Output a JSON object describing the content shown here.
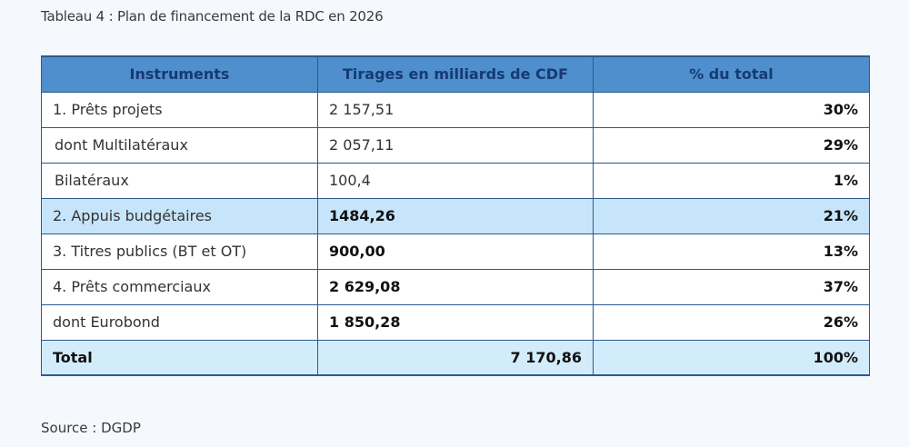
{
  "caption": "Tableau 4 : Plan de financement de la RDC en 2026",
  "table": {
    "headers": [
      "Instruments",
      "Tirages en milliards de CDF",
      "% du total"
    ],
    "rows": [
      {
        "instrument": "1. Prêts projets",
        "tirages": "2 157,51",
        "pct": "30%"
      },
      {
        "instrument": " dont Multilatéraux",
        "tirages": "2 057,11",
        "pct": "29%"
      },
      {
        "instrument": " Bilatéraux",
        "tirages": "100,4",
        "pct": "1%"
      },
      {
        "instrument": "2. Appuis budgétaires",
        "tirages": "1484,26",
        "pct": "21%"
      },
      {
        "instrument": "3. Titres publics (BT et OT)",
        "tirages": "900,00",
        "pct": "13%"
      },
      {
        "instrument": "4. Prêts commerciaux",
        "tirages": "2 629,08",
        "pct": "37%"
      },
      {
        "instrument": "dont Eurobond",
        "tirages": "1 850,28",
        "pct": "26%"
      }
    ],
    "total": {
      "instrument": "Total",
      "tirages": "7 170,86",
      "pct": "100%"
    }
  },
  "source": "Source : DGDP",
  "colors": {
    "header_bg": "#4f8fce",
    "header_text": "#163a72",
    "border": "#2b5a92",
    "highlight_row": "#c6e5fa",
    "total_row": "#d3ecfb"
  }
}
